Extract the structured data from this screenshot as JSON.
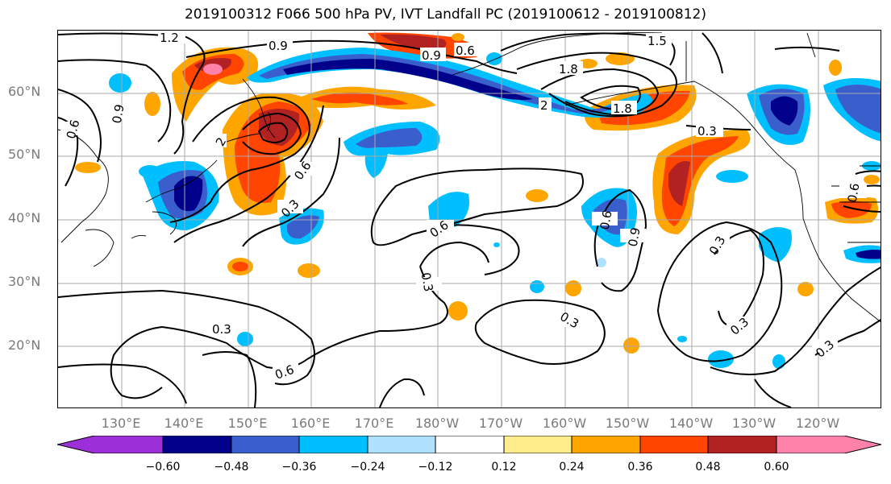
{
  "title": "2019100312 F066 500 hPa PV, IVT Landfall PC (2019100612 - 2019100812)",
  "lat_labels": [
    "60°N",
    "50°N",
    "40°N",
    "30°N",
    "20°N"
  ],
  "lon_labels": [
    "130°E",
    "140°E",
    "150°E",
    "160°E",
    "170°E",
    "180°W",
    "170°W",
    "160°W",
    "150°W",
    "140°W",
    "130°W",
    "120°W"
  ],
  "contour_labels": [
    "1.2",
    "0.9",
    "0.6",
    "0.9",
    "1.5",
    "1.8",
    "2",
    "0.9",
    "0.6",
    "2",
    "1.8",
    "0.3",
    "0.6",
    "0.3",
    "0.6",
    "0.6",
    "0.9",
    "0.3",
    "0.3",
    "0.3",
    "0.3",
    "0.6",
    "0.3",
    "0.3",
    "0.6"
  ],
  "colorbar": {
    "tick_labels": [
      "−0.60",
      "−0.48",
      "−0.36",
      "−0.24",
      "−0.12",
      "0.12",
      "0.24",
      "0.36",
      "0.48",
      "0.60"
    ],
    "colors": [
      "#9b30d9",
      "#00008b",
      "#3a5fcd",
      "#00bfff",
      "#b0e2ff",
      "#ffffff",
      "#ffec8b",
      "#ffa500",
      "#ff4500",
      "#b22222",
      "#ff82ab"
    ]
  }
}
